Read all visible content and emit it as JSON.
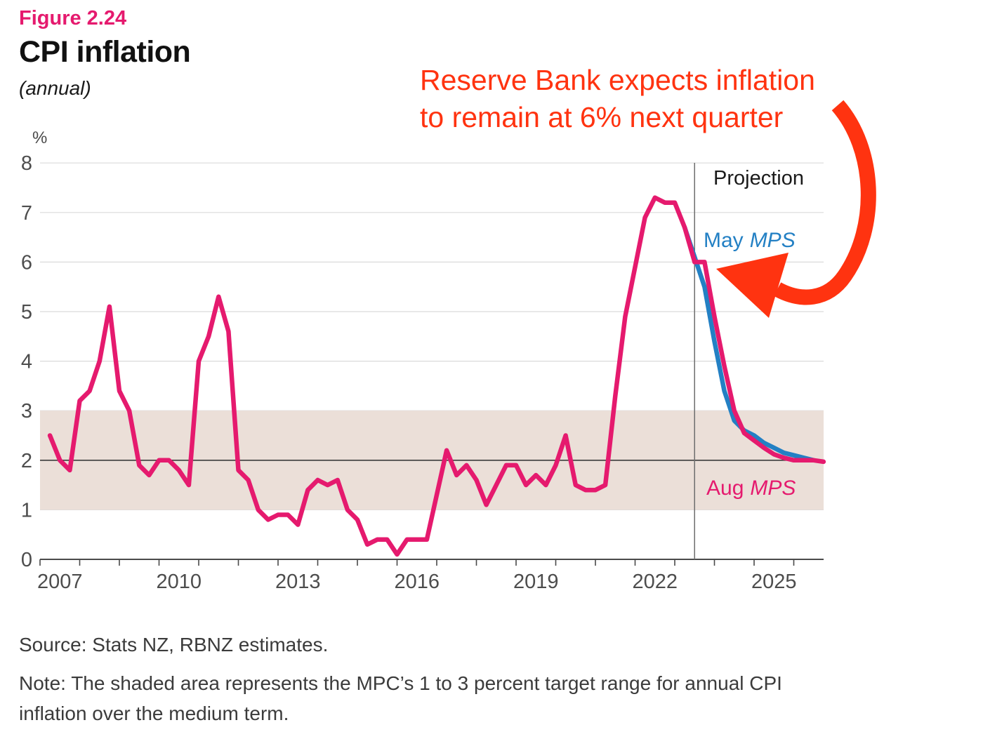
{
  "figure": {
    "number": "Figure 2.24",
    "title": "CPI inflation",
    "subtitle": "(annual)",
    "unit": "%"
  },
  "annotation": {
    "line1": "Reserve Bank expects inflation",
    "line2": "to remain at 6% next quarter"
  },
  "labels": {
    "projection": "Projection",
    "may_prefix": "May",
    "aug_prefix": "Aug",
    "mps": "MPS"
  },
  "footer": {
    "source": "Source: Stats NZ, RBNZ estimates.",
    "note": "Note: The shaded area represents the MPC’s 1 to 3 percent target range for annual CPI inflation over the medium term."
  },
  "colors": {
    "brand_pink": "#E51A6E",
    "projection_blue": "#2380C4",
    "annotation_red": "#FF3310",
    "target_band": "#EBDFD8",
    "gridline": "#DADADA",
    "axis": "#4A4A4A",
    "midpoint_line": "#3C3C3C",
    "divider": "#6E6E6E",
    "tick_text": "#4D4D4D"
  },
  "chart_data": {
    "type": "line",
    "title": "CPI inflation (annual)",
    "xlabel": "",
    "ylabel": "%",
    "ylim": [
      0,
      8
    ],
    "y_ticks": [
      0,
      1,
      2,
      3,
      4,
      5,
      6,
      7,
      8
    ],
    "x_tick_years": [
      2007,
      2010,
      2013,
      2016,
      2019,
      2022,
      2025
    ],
    "x_range": [
      2007.0,
      2026.75
    ],
    "grid": true,
    "target_band": {
      "from": 1,
      "to": 3,
      "meaning": "MPC 1 to 3 percent target range"
    },
    "midpoint_line": 2,
    "projection_start": 2023.5,
    "series": [
      {
        "id": "may-mps",
        "name": "May MPS projection",
        "color": "#2380C4",
        "start": 2023.25,
        "step": 0.25,
        "values": [
          6.7,
          6.1,
          5.5,
          4.4,
          3.4,
          2.8,
          2.6,
          2.5,
          2.35,
          2.25,
          2.15,
          2.1,
          2.05,
          2.0
        ]
      },
      {
        "id": "aug-mps",
        "name": "Aug MPS projection",
        "color": "#E51A6E",
        "start": 2023.5,
        "step": 0.25,
        "values": [
          6.0,
          6.0,
          4.9,
          3.9,
          3.0,
          2.55,
          2.4,
          2.25,
          2.12,
          2.05,
          2.0,
          2.0,
          2.0,
          1.97
        ]
      },
      {
        "id": "history",
        "name": "CPI inflation (actual, annual %)",
        "color": "#E51A6E",
        "start": 2007.25,
        "step": 0.25,
        "values": [
          2.5,
          2.0,
          1.8,
          3.2,
          3.4,
          4.0,
          5.1,
          3.4,
          3.0,
          1.9,
          1.7,
          2.0,
          2.0,
          1.8,
          1.5,
          4.0,
          4.5,
          5.3,
          4.6,
          1.8,
          1.6,
          1.0,
          0.8,
          0.9,
          0.9,
          0.7,
          1.4,
          1.6,
          1.5,
          1.6,
          1.0,
          0.8,
          0.3,
          0.4,
          0.4,
          0.1,
          0.4,
          0.4,
          0.4,
          1.3,
          2.2,
          1.7,
          1.9,
          1.6,
          1.1,
          1.5,
          1.9,
          1.9,
          1.5,
          1.7,
          1.5,
          1.9,
          2.5,
          1.5,
          1.4,
          1.4,
          1.5,
          3.3,
          4.9,
          5.9,
          6.9,
          7.3,
          7.2,
          7.2,
          6.7,
          6.0
        ]
      }
    ]
  }
}
